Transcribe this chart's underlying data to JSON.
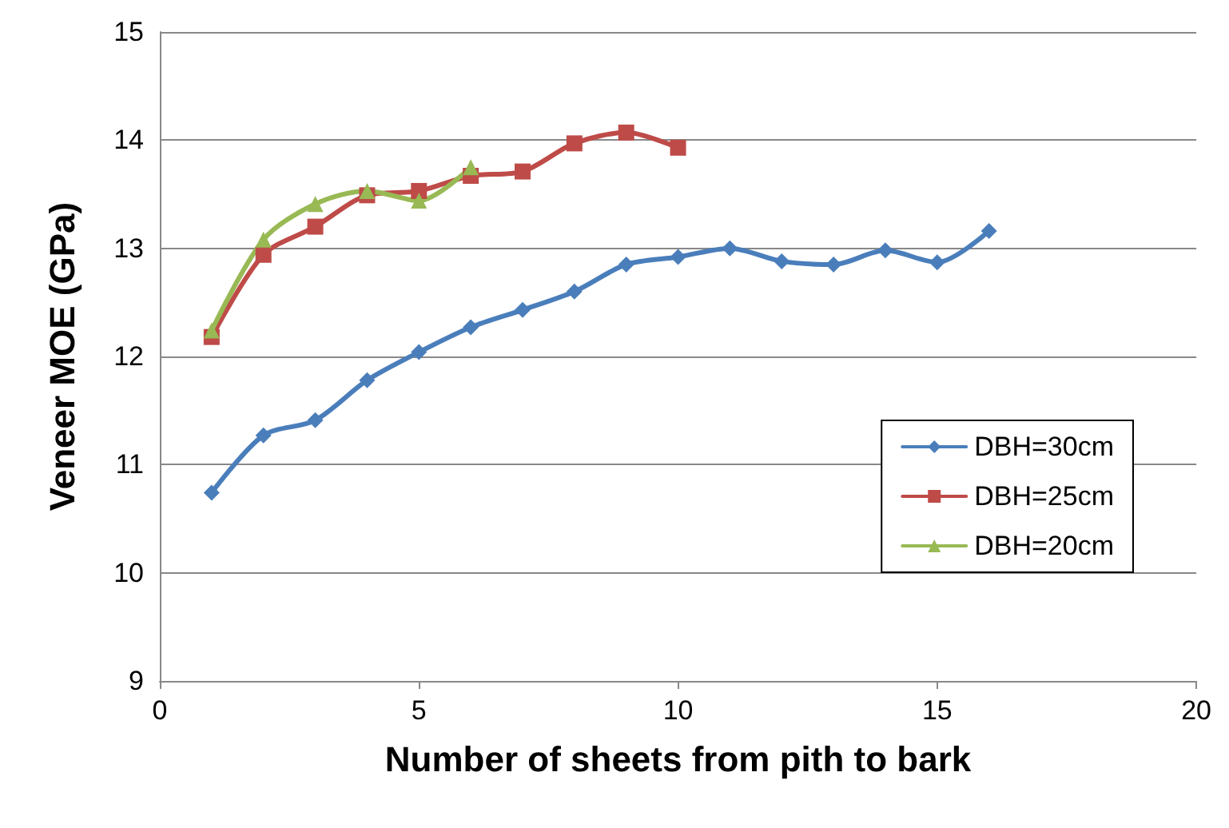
{
  "chart_data": {
    "type": "line",
    "xlabel": "Number of sheets from pith to bark",
    "ylabel": "Veneer MOE (GPa)",
    "xlim": [
      0,
      20
    ],
    "xticks": [
      0,
      5,
      10,
      15,
      20
    ],
    "ylim": [
      9,
      15
    ],
    "yticks": [
      9,
      10,
      11,
      12,
      13,
      14,
      15
    ],
    "grid": "y",
    "legend": "right",
    "line_style": "solid",
    "series": [
      {
        "name": "DBH=30cm",
        "color": "#4a7ebb",
        "marker": "diamond",
        "x": [
          1,
          2,
          3,
          4,
          5,
          6,
          7,
          8,
          9,
          10,
          11,
          12,
          13,
          14,
          15,
          16
        ],
        "values": [
          10.74,
          11.27,
          11.41,
          11.78,
          12.04,
          12.27,
          12.43,
          12.6,
          12.85,
          12.92,
          13.0,
          12.88,
          12.85,
          12.98,
          12.87,
          13.16
        ]
      },
      {
        "name": "DBH=25cm",
        "color": "#be4b48",
        "marker": "square",
        "x": [
          1,
          2,
          3,
          4,
          5,
          6,
          7,
          8,
          9,
          10
        ],
        "values": [
          12.18,
          12.94,
          13.2,
          13.49,
          13.53,
          13.67,
          13.71,
          13.97,
          14.07,
          13.93
        ]
      },
      {
        "name": "DBH=20cm",
        "color": "#98b954",
        "marker": "triangle",
        "x": [
          1,
          2,
          3,
          4,
          5,
          6
        ],
        "values": [
          12.24,
          13.08,
          13.41,
          13.53,
          13.44,
          13.75
        ]
      }
    ]
  }
}
